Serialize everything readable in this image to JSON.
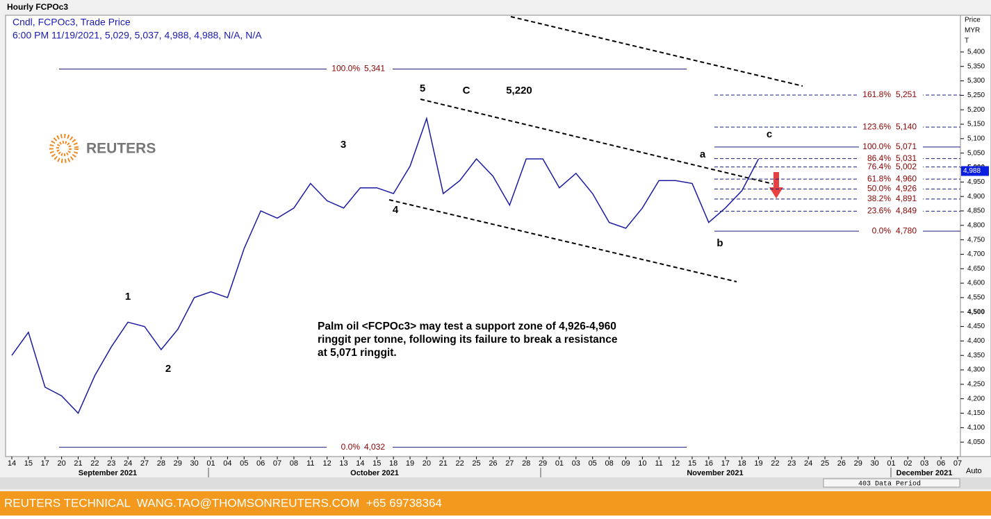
{
  "header": {
    "title": "Hourly FCPOc3",
    "line1": "Cndl, FCPOc3, Trade Price",
    "line2": "6:00 PM 11/19/2021, 5,029, 5,037, 4,988, 4,988, N/A, N/A"
  },
  "logo": "REUTERS",
  "chart_data": {
    "type": "line",
    "color": "#1a1aa0",
    "categories": [
      "14",
      "15",
      "17",
      "20",
      "21",
      "22",
      "23",
      "24",
      "27",
      "28",
      "29",
      "30",
      "01",
      "04",
      "05",
      "06",
      "07",
      "08",
      "11",
      "12",
      "13",
      "14",
      "15",
      "18",
      "19",
      "20",
      "21",
      "22",
      "25",
      "26",
      "27",
      "28",
      "29",
      "01",
      "03",
      "05",
      "08",
      "09",
      "10",
      "11",
      "12",
      "15",
      "16",
      "17",
      "18",
      "19",
      "22",
      "23",
      "24",
      "25",
      "26",
      "29",
      "30",
      "01",
      "02",
      "03",
      "06",
      "07"
    ],
    "values": [
      4350,
      4430,
      4240,
      4210,
      4150,
      4280,
      4380,
      4465,
      4450,
      4370,
      4440,
      4550,
      4570,
      4550,
      4720,
      4850,
      4825,
      4860,
      4945,
      4885,
      4860,
      4930,
      4930,
      4910,
      5005,
      5170,
      4910,
      4955,
      5030,
      4970,
      4870,
      5030,
      5030,
      4930,
      4980,
      4910,
      4810,
      4790,
      4860,
      4955,
      4955,
      4945,
      4810,
      4860,
      4920,
      5030,
      null,
      null,
      null,
      null,
      null,
      null,
      null,
      null,
      null,
      null,
      null,
      null
    ],
    "months": [
      "September 2021",
      "October 2021",
      "November 2021",
      "December 2021"
    ],
    "y_axis_label": [
      "Price",
      "MYR",
      "T"
    ],
    "ylim": [
      4000,
      5527
    ],
    "yticks": [
      {
        "value": 4050,
        "label": "4,050"
      },
      {
        "value": 4100,
        "label": "4,100"
      },
      {
        "value": 4150,
        "label": "4,150"
      },
      {
        "value": 4200,
        "label": "4,200"
      },
      {
        "value": 4250,
        "label": "4,250"
      },
      {
        "value": 4300,
        "label": "4,300"
      },
      {
        "value": 4350,
        "label": "4,350"
      },
      {
        "value": 4400,
        "label": "4,400"
      },
      {
        "value": 4450,
        "label": "4,450"
      },
      {
        "value": 4500,
        "label": "4,500"
      },
      {
        "value": 4550,
        "label": "4,550"
      },
      {
        "value": 4600,
        "label": "4,600"
      },
      {
        "value": 4650,
        "label": "4,650"
      },
      {
        "value": 4700,
        "label": "4,700"
      },
      {
        "value": 4750,
        "label": "4,750"
      },
      {
        "value": 4800,
        "label": "4,800"
      },
      {
        "value": 4850,
        "label": "4,850"
      },
      {
        "value": 4900,
        "label": "4,900"
      },
      {
        "value": 4950,
        "label": "4,950"
      },
      {
        "value": 5000,
        "label": "5,000"
      },
      {
        "value": 5050,
        "label": "5,050"
      },
      {
        "value": 5100,
        "label": "5,100"
      },
      {
        "value": 5150,
        "label": "5,150"
      },
      {
        "value": 5200,
        "label": "5,200"
      },
      {
        "value": 5250,
        "label": "5,250"
      },
      {
        "value": 5300,
        "label": "5,300"
      },
      {
        "value": 5350,
        "label": "5,350"
      },
      {
        "value": 5400,
        "label": "5,400"
      }
    ],
    "last_price": {
      "value": 4988,
      "label": "4,988"
    },
    "fib_major": [
      {
        "pct": "100.0%",
        "value": 5341,
        "label": "5,341"
      },
      {
        "pct": "0.0%",
        "value": 4032,
        "label": "4,032"
      }
    ],
    "fib_minor": [
      {
        "pct": "161.8%",
        "value": 5251,
        "label": "5,251"
      },
      {
        "pct": "123.6%",
        "value": 5140,
        "label": "5,140"
      },
      {
        "pct": "100.0%",
        "value": 5071,
        "label": "5,071"
      },
      {
        "pct": "86.4%",
        "value": 5031,
        "label": "5,031"
      },
      {
        "pct": "76.4%",
        "value": 5002,
        "label": "5,002"
      },
      {
        "pct": "61.8%",
        "value": 4960,
        "label": "4,960"
      },
      {
        "pct": "50.0%",
        "value": 4926,
        "label": "4,926"
      },
      {
        "pct": "38.2%",
        "value": 4891,
        "label": "4,891"
      },
      {
        "pct": "23.6%",
        "value": 4849,
        "label": "4,849"
      },
      {
        "pct": "0.0%",
        "value": 4780,
        "label": "4,780"
      }
    ],
    "wave_labels": [
      "5",
      "C",
      "5,220",
      "3",
      "4",
      "1",
      "2",
      "a",
      "b",
      "c"
    ],
    "annotation": [
      "Palm oil <FCPOc3> may test a support zone of 4,926-4,960",
      "ringgit per tonne, following its failure to break a resistance",
      "at 5,071 ringgit."
    ]
  },
  "status": {
    "period": "403 Data Period",
    "auto": "Auto"
  },
  "footer": "REUTERS TECHNICAL  WANG.TAO@THOMSONREUTERS.COM  +65 69738364"
}
